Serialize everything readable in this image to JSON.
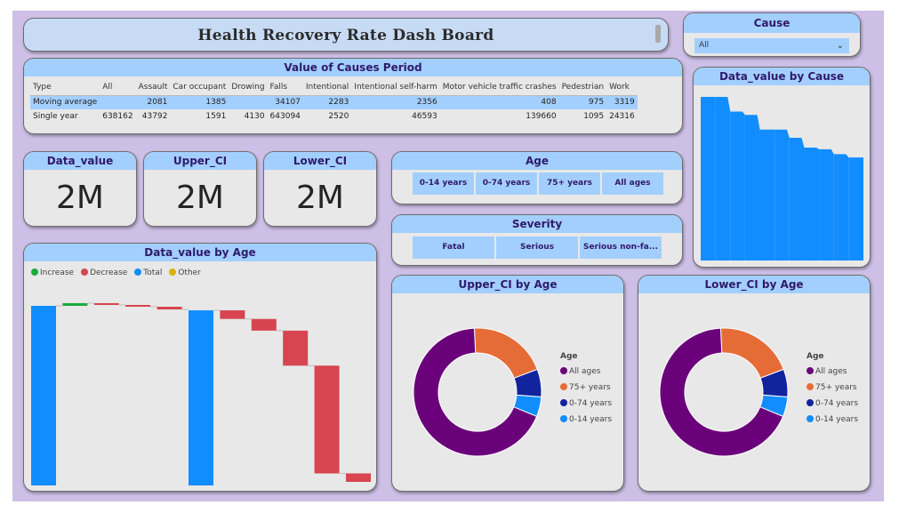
{
  "dashboard": {
    "title": "Health Recovery Rate Dash Board"
  },
  "cause_slicer": {
    "title": "Cause",
    "selected": "All"
  },
  "causes_table": {
    "title": "Value of Causes Period",
    "columns": [
      "Type",
      "All",
      "Assault",
      "Car occupant",
      "Drowing",
      "Falls",
      "Intentional",
      "Intentional self-harm",
      "Motor vehicle traffic crashes",
      "Pedestrian",
      "Work"
    ],
    "rows": [
      [
        "Moving average",
        "",
        "2081",
        "1385",
        "",
        "34107",
        "2283",
        "2356",
        "408",
        "975",
        "3319"
      ],
      [
        "Single year",
        "638162",
        "43792",
        "1591",
        "4130",
        "643094",
        "2520",
        "46593",
        "139660",
        "1095",
        "24316"
      ]
    ]
  },
  "kpis": [
    {
      "label": "Data_value",
      "value": "2M"
    },
    {
      "label": "Upper_CI",
      "value": "2M"
    },
    {
      "label": "Lower_CI",
      "value": "2M"
    }
  ],
  "age_slicer": {
    "title": "Age",
    "options": [
      "0-14 years",
      "0-74 years",
      "75+ years",
      "All ages"
    ]
  },
  "severity_slicer": {
    "title": "Severity",
    "options": [
      "Fatal",
      "Serious",
      "Serious non-fa..."
    ]
  },
  "colors": {
    "blue": "#118dff",
    "increase": "#1aab40",
    "decrease": "#d64550",
    "other": "#d9b300",
    "header": "#a3cfff",
    "purple": "#6b007b",
    "orange": "#e66c37",
    "navy": "#12239e"
  },
  "charts": {
    "cause_bar_title": "Data_value by Cause",
    "waterfall_title": "Data_value by Age",
    "upper_title": "Upper_CI by Age",
    "lower_title": "Lower_CI by Age"
  },
  "chart_data": [
    {
      "type": "bar",
      "title": "Data_value by Cause",
      "values": [
        100,
        100,
        91,
        89,
        80,
        80,
        75,
        69,
        68,
        65,
        63
      ],
      "color": "#118dff"
    },
    {
      "type": "waterfall",
      "title": "Data_value by Age",
      "legend": [
        "Increase",
        "Decrease",
        "Total",
        "Other"
      ],
      "legend_colors": [
        "#1aab40",
        "#d64550",
        "#118dff",
        "#d9b300"
      ],
      "steps": [
        {
          "kind": "total",
          "value": 100
        },
        {
          "kind": "increase",
          "value": 1.5
        },
        {
          "kind": "decrease",
          "value": 1
        },
        {
          "kind": "decrease",
          "value": 1
        },
        {
          "kind": "decrease",
          "value": 1.5
        },
        {
          "kind": "total",
          "value": 97.5
        },
        {
          "kind": "decrease",
          "value": 4.8
        },
        {
          "kind": "decrease",
          "value": 6.5
        },
        {
          "kind": "decrease",
          "value": 19.5
        },
        {
          "kind": "decrease",
          "value": 60
        },
        {
          "kind": "decrease",
          "value": 4.7
        }
      ]
    },
    {
      "type": "pie",
      "title": "Upper_CI by Age",
      "legend_title": "Age",
      "labels": [
        "All ages",
        "75+ years",
        "0-74 years",
        "0-14 years"
      ],
      "values": [
        68,
        20,
        7,
        5
      ],
      "colors": [
        "#6b007b",
        "#e66c37",
        "#12239e",
        "#118dff"
      ]
    },
    {
      "type": "pie",
      "title": "Lower_CI by Age",
      "legend_title": "Age",
      "labels": [
        "All ages",
        "75+ years",
        "0-74 years",
        "0-14 years"
      ],
      "values": [
        68,
        20,
        7,
        5
      ],
      "colors": [
        "#6b007b",
        "#e66c37",
        "#12239e",
        "#118dff"
      ]
    }
  ]
}
